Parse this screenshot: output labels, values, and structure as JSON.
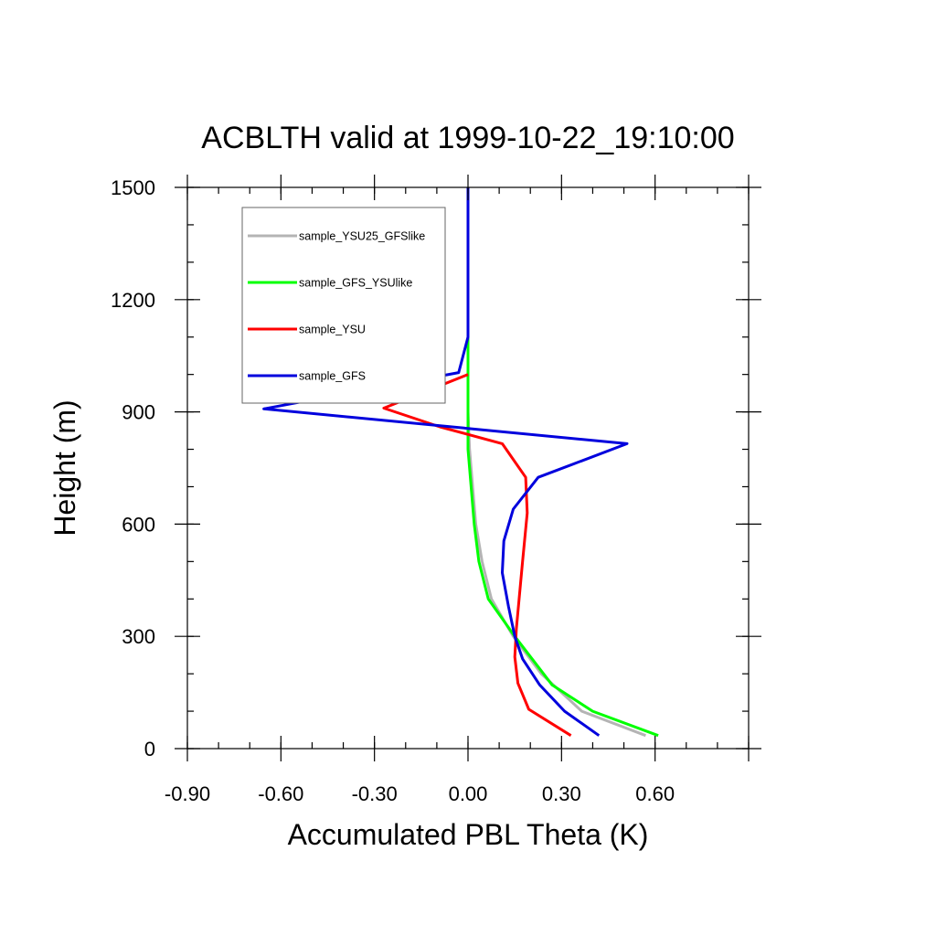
{
  "chart_data": {
    "type": "line",
    "title": "ACBLTH valid at 1999-10-22_19:10:00",
    "xlabel": "Accumulated PBL Theta (K)",
    "ylabel": "Height (m)",
    "xlim": [
      -0.9,
      0.9
    ],
    "ylim": [
      0,
      1500
    ],
    "x_ticks": [
      -0.9,
      -0.6,
      -0.3,
      0.0,
      0.3,
      0.6
    ],
    "x_tick_labels": [
      "-0.90",
      "-0.60",
      "-0.30",
      "0.00",
      "0.30",
      "0.60"
    ],
    "y_ticks": [
      0,
      300,
      600,
      900,
      1200,
      1500
    ],
    "y_tick_labels": [
      "0",
      "300",
      "600",
      "900",
      "1200",
      "1500"
    ],
    "grid": false,
    "legend_position": "top-left",
    "series": [
      {
        "name": "sample_YSU25_GFSlike",
        "color": "#b4b4b4",
        "points": [
          [
            0.0,
            1500
          ],
          [
            0.0,
            1100
          ],
          [
            0.0,
            1000
          ],
          [
            0.0,
            900
          ],
          [
            0.005,
            800
          ],
          [
            0.015,
            700
          ],
          [
            0.025,
            600
          ],
          [
            0.045,
            500
          ],
          [
            0.075,
            400
          ],
          [
            0.145,
            300
          ],
          [
            0.235,
            200
          ],
          [
            0.365,
            100
          ],
          [
            0.57,
            35
          ]
        ]
      },
      {
        "name": "sample_GFS_YSUlike",
        "color": "#00ff00",
        "points": [
          [
            0.0,
            1500
          ],
          [
            0.0,
            1100
          ],
          [
            0.0,
            1000
          ],
          [
            0.0,
            900
          ],
          [
            0.0,
            800
          ],
          [
            0.01,
            700
          ],
          [
            0.02,
            600
          ],
          [
            0.035,
            500
          ],
          [
            0.065,
            400
          ],
          [
            0.15,
            300
          ],
          [
            0.27,
            170
          ],
          [
            0.4,
            100
          ],
          [
            0.61,
            35
          ]
        ]
      },
      {
        "name": "sample_YSU",
        "color": "#ff0000",
        "points": [
          [
            0.0,
            1000
          ],
          [
            -0.27,
            910
          ],
          [
            -0.09,
            860
          ],
          [
            0.11,
            815
          ],
          [
            0.185,
            725
          ],
          [
            0.19,
            630
          ],
          [
            0.175,
            500
          ],
          [
            0.155,
            320
          ],
          [
            0.15,
            245
          ],
          [
            0.16,
            175
          ],
          [
            0.195,
            105
          ],
          [
            0.33,
            35
          ]
        ]
      },
      {
        "name": "sample_GFS",
        "color": "#0000dd",
        "points": [
          [
            0.0,
            1500
          ],
          [
            0.0,
            1100
          ],
          [
            -0.03,
            1005
          ],
          [
            -0.655,
            908
          ],
          [
            0.51,
            815
          ],
          [
            0.225,
            725
          ],
          [
            0.145,
            640
          ],
          [
            0.115,
            555
          ],
          [
            0.11,
            470
          ],
          [
            0.13,
            380
          ],
          [
            0.15,
            300
          ],
          [
            0.175,
            240
          ],
          [
            0.23,
            170
          ],
          [
            0.31,
            100
          ],
          [
            0.42,
            35
          ]
        ]
      }
    ]
  }
}
